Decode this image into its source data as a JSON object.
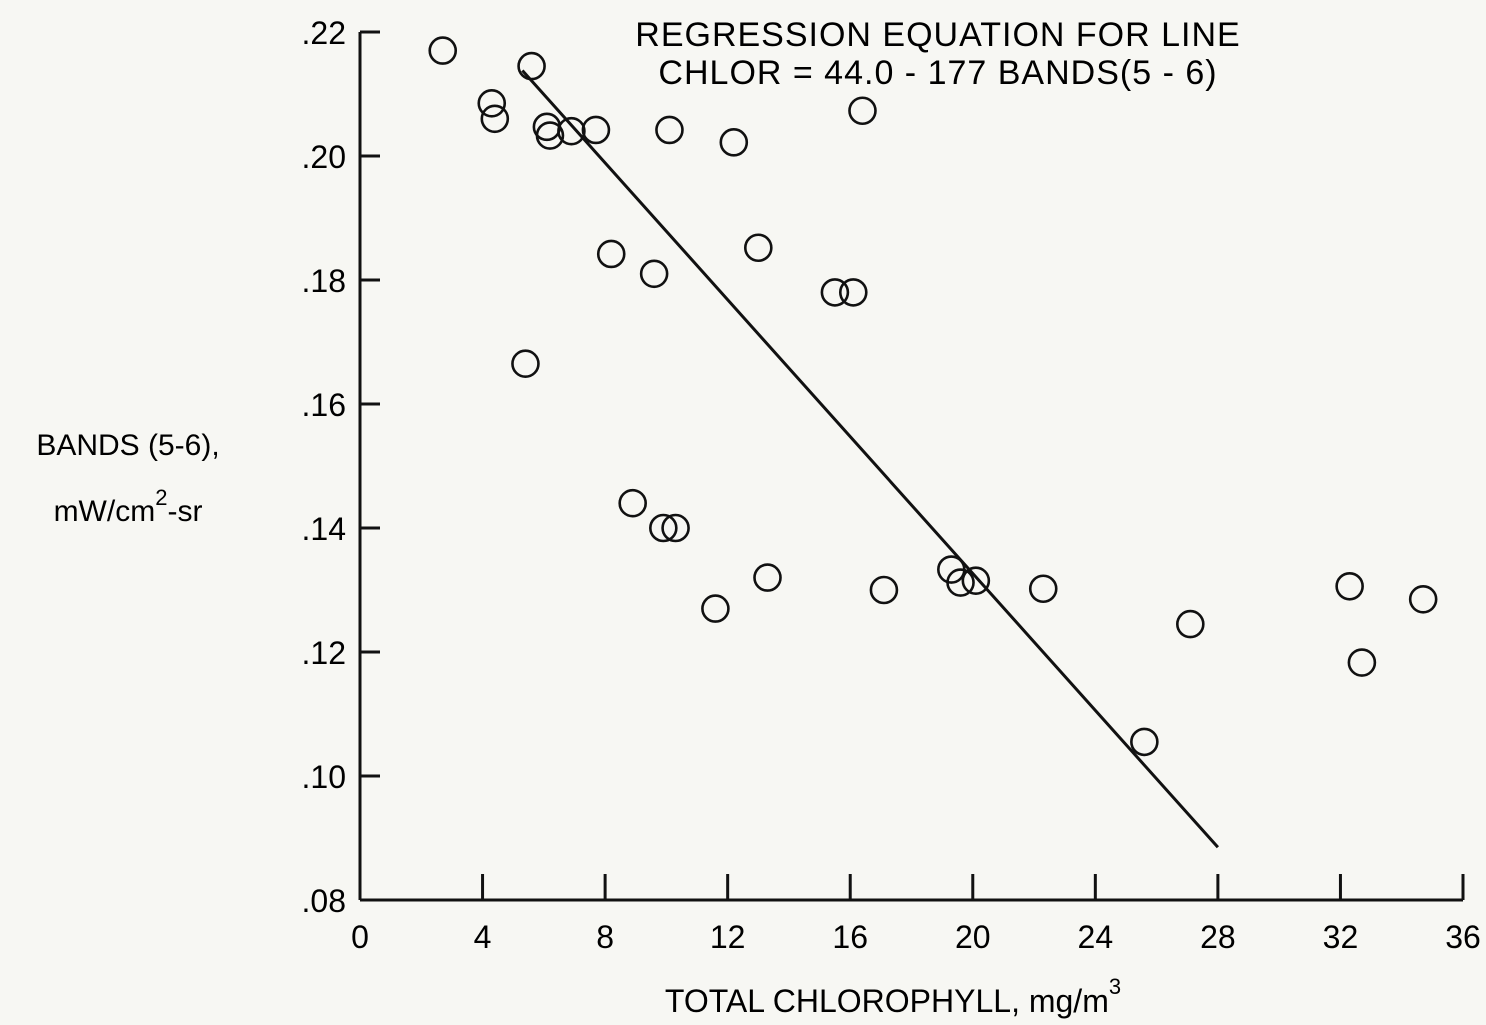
{
  "chart_data": {
    "type": "scatter",
    "title": "REGRESSION EQUATION FOR LINE",
    "subtitle": "CHLOR = 44.0 - 177 BANDS(5 - 6)",
    "xlabel": "TOTAL CHLOROPHYLL, mg/m",
    "xlabel_sup": "3",
    "ylabel_line1": "BANDS (5-6),",
    "ylabel_line2_pre": "mW/cm",
    "ylabel_line2_sup": "2",
    "ylabel_line2_post": "-sr",
    "xlim": [
      0,
      36
    ],
    "ylim": [
      0.08,
      0.22
    ],
    "xticks": [
      {
        "value": 0,
        "label": "0"
      },
      {
        "value": 4,
        "label": "4"
      },
      {
        "value": 8,
        "label": "8"
      },
      {
        "value": 12,
        "label": "12"
      },
      {
        "value": 16,
        "label": "16"
      },
      {
        "value": 20,
        "label": "20"
      },
      {
        "value": 24,
        "label": "24"
      },
      {
        "value": 28,
        "label": "28"
      },
      {
        "value": 32,
        "label": "32"
      },
      {
        "value": 36,
        "label": "36"
      }
    ],
    "yticks": [
      {
        "value": 0.08,
        "label": ".08"
      },
      {
        "value": 0.1,
        "label": ".10"
      },
      {
        "value": 0.12,
        "label": ".12"
      },
      {
        "value": 0.14,
        "label": ".14"
      },
      {
        "value": 0.16,
        "label": ".16"
      },
      {
        "value": 0.18,
        "label": ".18"
      },
      {
        "value": 0.2,
        "label": ".20"
      },
      {
        "value": 0.22,
        "label": ".22"
      }
    ],
    "grid": false,
    "marker": "open-circle",
    "points": [
      {
        "x": 2.7,
        "y": 0.217
      },
      {
        "x": 5.6,
        "y": 0.2145
      },
      {
        "x": 4.3,
        "y": 0.2085
      },
      {
        "x": 4.4,
        "y": 0.206
      },
      {
        "x": 6.1,
        "y": 0.2047
      },
      {
        "x": 6.2,
        "y": 0.2033
      },
      {
        "x": 6.9,
        "y": 0.204
      },
      {
        "x": 7.7,
        "y": 0.2042
      },
      {
        "x": 10.1,
        "y": 0.2042
      },
      {
        "x": 12.2,
        "y": 0.2022
      },
      {
        "x": 16.4,
        "y": 0.2073
      },
      {
        "x": 8.2,
        "y": 0.1842
      },
      {
        "x": 9.6,
        "y": 0.181
      },
      {
        "x": 13.0,
        "y": 0.1852
      },
      {
        "x": 15.5,
        "y": 0.178
      },
      {
        "x": 16.1,
        "y": 0.178
      },
      {
        "x": 5.4,
        "y": 0.1665
      },
      {
        "x": 8.9,
        "y": 0.144
      },
      {
        "x": 9.9,
        "y": 0.14
      },
      {
        "x": 10.3,
        "y": 0.14
      },
      {
        "x": 11.6,
        "y": 0.127
      },
      {
        "x": 13.3,
        "y": 0.132
      },
      {
        "x": 17.1,
        "y": 0.13
      },
      {
        "x": 19.3,
        "y": 0.1333
      },
      {
        "x": 19.6,
        "y": 0.1312
      },
      {
        "x": 20.1,
        "y": 0.1315
      },
      {
        "x": 22.3,
        "y": 0.1302
      },
      {
        "x": 25.6,
        "y": 0.1055
      },
      {
        "x": 27.1,
        "y": 0.1245
      },
      {
        "x": 32.3,
        "y": 0.1306
      },
      {
        "x": 32.7,
        "y": 0.1183
      },
      {
        "x": 34.7,
        "y": 0.1285
      }
    ],
    "regression_line": {
      "x": [
        5.3,
        28.0
      ],
      "y": [
        0.2138,
        0.0885
      ]
    }
  }
}
